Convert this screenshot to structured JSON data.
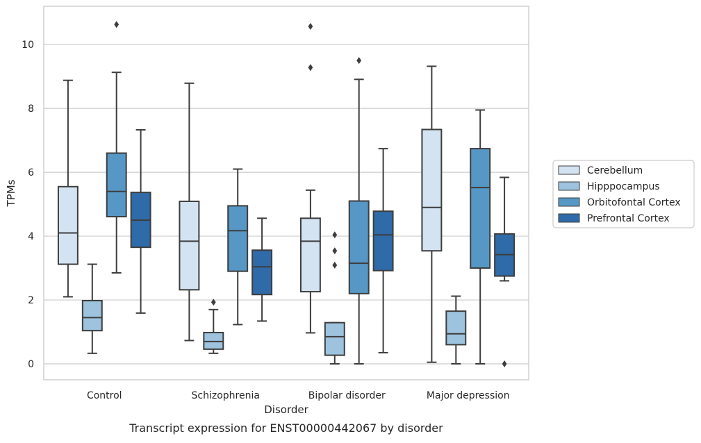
{
  "chart_data": {
    "type": "box",
    "caption": "Transcript expression for ENST00000442067 by disorder",
    "xlabel": "Disorder",
    "ylabel": "TPMs",
    "ylim": [
      -0.5,
      11.2
    ],
    "yticks": [
      0,
      2,
      4,
      6,
      8,
      10
    ],
    "grid": true,
    "legend_position": "right",
    "categories": [
      "Control",
      "Schizophrenia",
      "Bipolar disorder",
      "Major depression"
    ],
    "series": [
      {
        "name": "Cerebellum",
        "color": "#d4e3f1",
        "boxes": [
          {
            "whisker_low": 2.1,
            "q1": 3.12,
            "median": 4.1,
            "q3": 5.55,
            "whisker_high": 8.88,
            "outliers": []
          },
          {
            "whisker_low": 0.73,
            "q1": 2.32,
            "median": 3.84,
            "q3": 5.09,
            "whisker_high": 8.79,
            "outliers": []
          },
          {
            "whisker_low": 0.97,
            "q1": 2.26,
            "median": 3.84,
            "q3": 4.56,
            "whisker_high": 5.44,
            "outliers": [
              9.28,
              10.57
            ]
          },
          {
            "whisker_low": 0.05,
            "q1": 3.54,
            "median": 4.9,
            "q3": 7.34,
            "whisker_high": 9.32,
            "outliers": []
          }
        ]
      },
      {
        "name": "Hipppocampus",
        "color": "#9dc3de",
        "boxes": [
          {
            "whisker_low": 0.33,
            "q1": 1.04,
            "median": 1.45,
            "q3": 1.98,
            "whisker_high": 3.12,
            "outliers": []
          },
          {
            "whisker_low": 0.33,
            "q1": 0.46,
            "median": 0.7,
            "q3": 0.98,
            "whisker_high": 1.7,
            "outliers": [
              1.93
            ]
          },
          {
            "whisker_low": 0.0,
            "q1": 0.27,
            "median": 0.85,
            "q3": 1.29,
            "whisker_high": 1.29,
            "outliers": [
              3.09,
              3.54,
              4.04
            ]
          },
          {
            "whisker_low": 0.0,
            "q1": 0.6,
            "median": 0.94,
            "q3": 1.65,
            "whisker_high": 2.12,
            "outliers": []
          }
        ]
      },
      {
        "name": "Orbitofontal Cortex",
        "color": "#5697c5",
        "boxes": [
          {
            "whisker_low": 2.85,
            "q1": 4.61,
            "median": 5.4,
            "q3": 6.6,
            "whisker_high": 9.13,
            "outliers": [
              10.63
            ]
          },
          {
            "whisker_low": 1.23,
            "q1": 2.9,
            "median": 4.17,
            "q3": 4.95,
            "whisker_high": 6.1,
            "outliers": []
          },
          {
            "whisker_low": 0.0,
            "q1": 2.2,
            "median": 3.15,
            "q3": 5.1,
            "whisker_high": 8.91,
            "outliers": [
              9.5
            ]
          },
          {
            "whisker_low": 0.0,
            "q1": 3.0,
            "median": 5.52,
            "q3": 6.74,
            "whisker_high": 7.95,
            "outliers": []
          }
        ]
      },
      {
        "name": "Prefrontal Cortex",
        "color": "#2f6ba8",
        "boxes": [
          {
            "whisker_low": 1.59,
            "q1": 3.65,
            "median": 4.5,
            "q3": 5.37,
            "whisker_high": 7.33,
            "outliers": []
          },
          {
            "whisker_low": 1.34,
            "q1": 2.17,
            "median": 3.04,
            "q3": 3.56,
            "whisker_high": 4.56,
            "outliers": []
          },
          {
            "whisker_low": 0.35,
            "q1": 2.92,
            "median": 4.04,
            "q3": 4.78,
            "whisker_high": 6.74,
            "outliers": []
          },
          {
            "whisker_low": 2.6,
            "q1": 2.75,
            "median": 3.42,
            "q3": 4.07,
            "whisker_high": 5.84,
            "outliers": [
              0.0
            ]
          }
        ]
      }
    ]
  }
}
